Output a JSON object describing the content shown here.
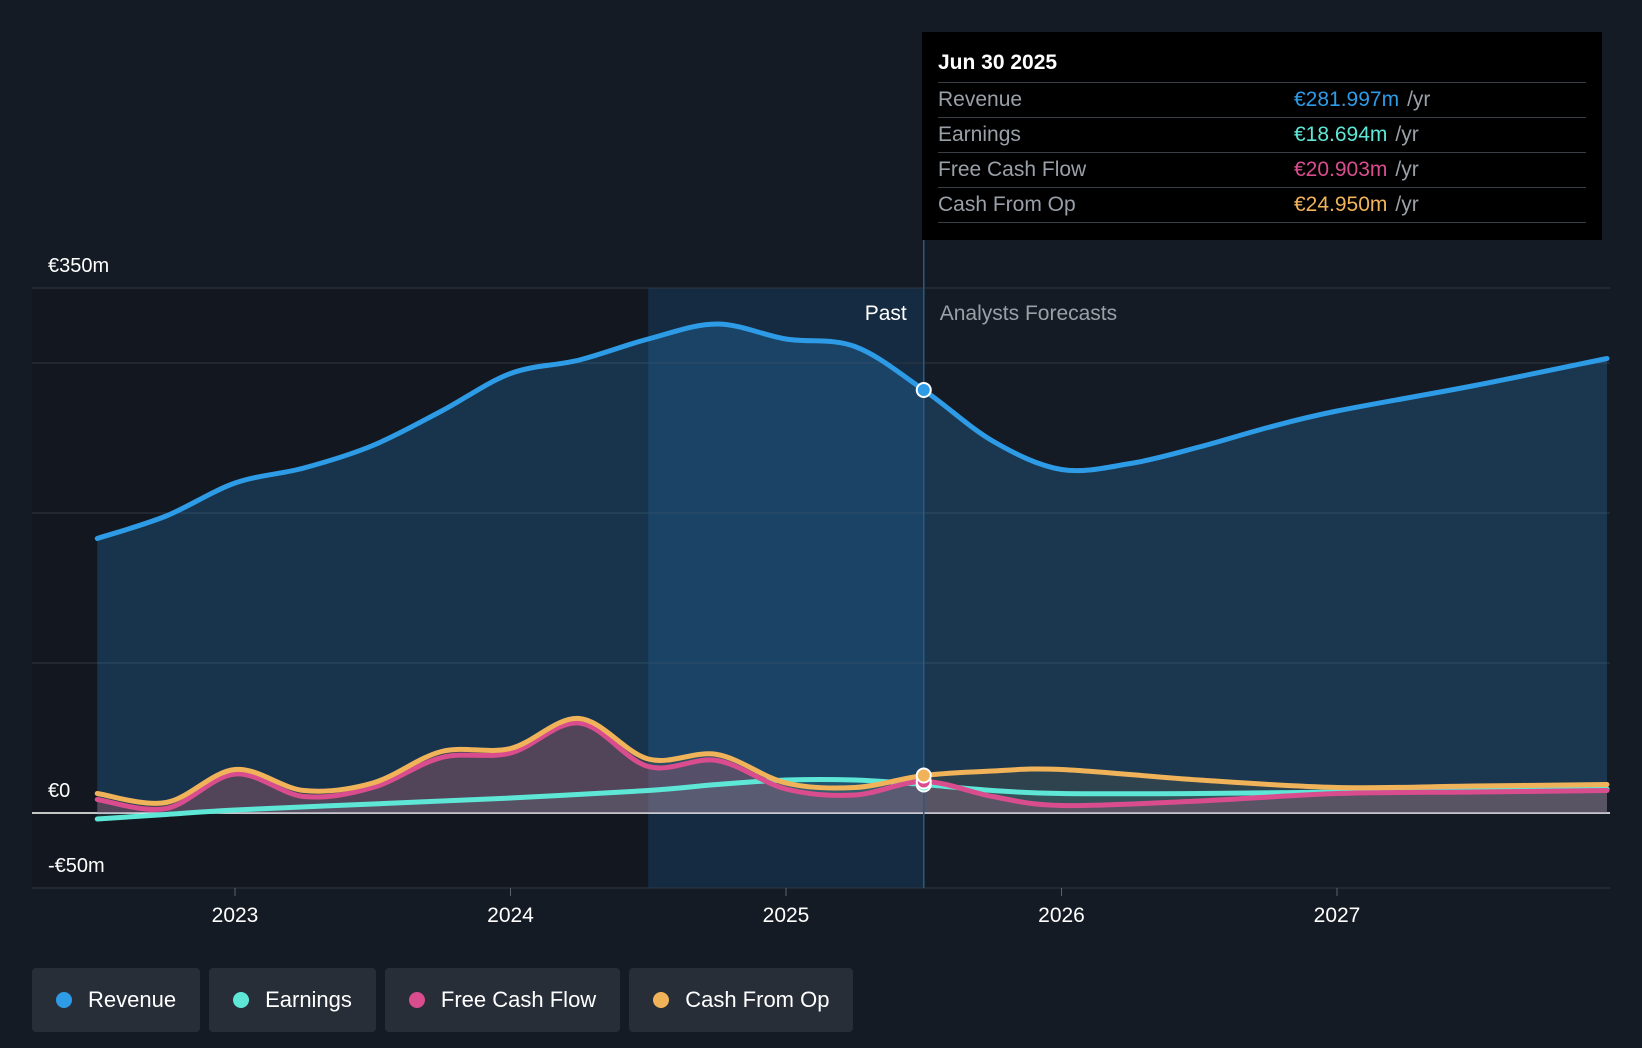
{
  "tooltip": {
    "date": "Jun 30 2025",
    "rows": [
      {
        "label": "Revenue",
        "value": "€281.997m",
        "unit": "/yr",
        "color": "#2d9be6"
      },
      {
        "label": "Earnings",
        "value": "€18.694m",
        "unit": "/yr",
        "color": "#5ee7d6"
      },
      {
        "label": "Free Cash Flow",
        "value": "€20.903m",
        "unit": "/yr",
        "color": "#d94d8f"
      },
      {
        "label": "Cash From Op",
        "value": "€24.950m",
        "unit": "/yr",
        "color": "#f0b35a"
      }
    ]
  },
  "labels": {
    "past": "Past",
    "forecast": "Analysts Forecasts"
  },
  "legend": [
    {
      "label": "Revenue",
      "color": "#2d9be6"
    },
    {
      "label": "Earnings",
      "color": "#5ee7d6"
    },
    {
      "label": "Free Cash Flow",
      "color": "#d94d8f"
    },
    {
      "label": "Cash From Op",
      "color": "#f0b35a"
    }
  ],
  "chart_data": {
    "type": "line",
    "ylim": [
      -50,
      350
    ],
    "xlim": [
      2022.25,
      2027.98
    ],
    "y_tick_labels": [
      {
        "value": 350,
        "label": "€350m"
      },
      {
        "value": 0,
        "label": "€0"
      },
      {
        "value": -50,
        "label": "-€50m"
      }
    ],
    "gridlines": [
      350,
      300,
      200,
      100,
      0,
      -50
    ],
    "x_ticks": [
      {
        "value": 2023,
        "label": "2023"
      },
      {
        "value": 2024,
        "label": "2024"
      },
      {
        "value": 2025,
        "label": "2025"
      },
      {
        "value": 2026,
        "label": "2026"
      },
      {
        "value": 2027,
        "label": "2027"
      }
    ],
    "past_highlight_start": 2024.5,
    "divider_x": 2025.5,
    "series": [
      {
        "name": "Revenue",
        "color": "#2d9be6",
        "points": [
          [
            2022.5,
            183
          ],
          [
            2022.75,
            198
          ],
          [
            2023.0,
            220
          ],
          [
            2023.25,
            230
          ],
          [
            2023.5,
            245
          ],
          [
            2023.75,
            268
          ],
          [
            2024.0,
            293
          ],
          [
            2024.25,
            302
          ],
          [
            2024.5,
            316
          ],
          [
            2024.75,
            326
          ],
          [
            2025.0,
            316
          ],
          [
            2025.25,
            311
          ],
          [
            2025.5,
            282
          ],
          [
            2025.75,
            248
          ],
          [
            2026.0,
            229
          ],
          [
            2026.25,
            233
          ],
          [
            2026.5,
            244
          ],
          [
            2026.75,
            257
          ],
          [
            2027.0,
            268
          ],
          [
            2027.5,
            285
          ],
          [
            2027.98,
            303
          ]
        ]
      },
      {
        "name": "Earnings",
        "color": "#5ee7d6",
        "points": [
          [
            2022.5,
            -4
          ],
          [
            2022.75,
            -1
          ],
          [
            2023.0,
            2
          ],
          [
            2023.5,
            6
          ],
          [
            2024.0,
            10
          ],
          [
            2024.5,
            15
          ],
          [
            2024.75,
            19
          ],
          [
            2025.0,
            22
          ],
          [
            2025.25,
            22
          ],
          [
            2025.5,
            19
          ],
          [
            2025.75,
            15
          ],
          [
            2026.0,
            13
          ],
          [
            2026.5,
            13
          ],
          [
            2027.0,
            14
          ],
          [
            2027.5,
            15
          ],
          [
            2027.98,
            16
          ]
        ]
      },
      {
        "name": "Free Cash Flow",
        "color": "#d94d8f",
        "points": [
          [
            2022.5,
            9
          ],
          [
            2022.75,
            3
          ],
          [
            2023.0,
            26
          ],
          [
            2023.25,
            11
          ],
          [
            2023.5,
            17
          ],
          [
            2023.75,
            37
          ],
          [
            2024.0,
            40
          ],
          [
            2024.25,
            60
          ],
          [
            2024.5,
            31
          ],
          [
            2024.75,
            35
          ],
          [
            2025.0,
            16
          ],
          [
            2025.25,
            12
          ],
          [
            2025.5,
            21
          ],
          [
            2025.75,
            11
          ],
          [
            2026.0,
            5
          ],
          [
            2026.5,
            8
          ],
          [
            2027.0,
            13
          ],
          [
            2027.5,
            14
          ],
          [
            2027.98,
            15
          ]
        ]
      },
      {
        "name": "Cash From Op",
        "color": "#f0b35a",
        "points": [
          [
            2022.5,
            13
          ],
          [
            2022.75,
            7
          ],
          [
            2023.0,
            29
          ],
          [
            2023.25,
            15
          ],
          [
            2023.5,
            20
          ],
          [
            2023.75,
            41
          ],
          [
            2024.0,
            43
          ],
          [
            2024.25,
            63
          ],
          [
            2024.5,
            36
          ],
          [
            2024.75,
            39
          ],
          [
            2025.0,
            20
          ],
          [
            2025.25,
            17
          ],
          [
            2025.5,
            25
          ],
          [
            2025.75,
            28
          ],
          [
            2026.0,
            29
          ],
          [
            2026.5,
            22
          ],
          [
            2027.0,
            17
          ],
          [
            2027.5,
            18
          ],
          [
            2027.98,
            19
          ]
        ]
      }
    ]
  }
}
